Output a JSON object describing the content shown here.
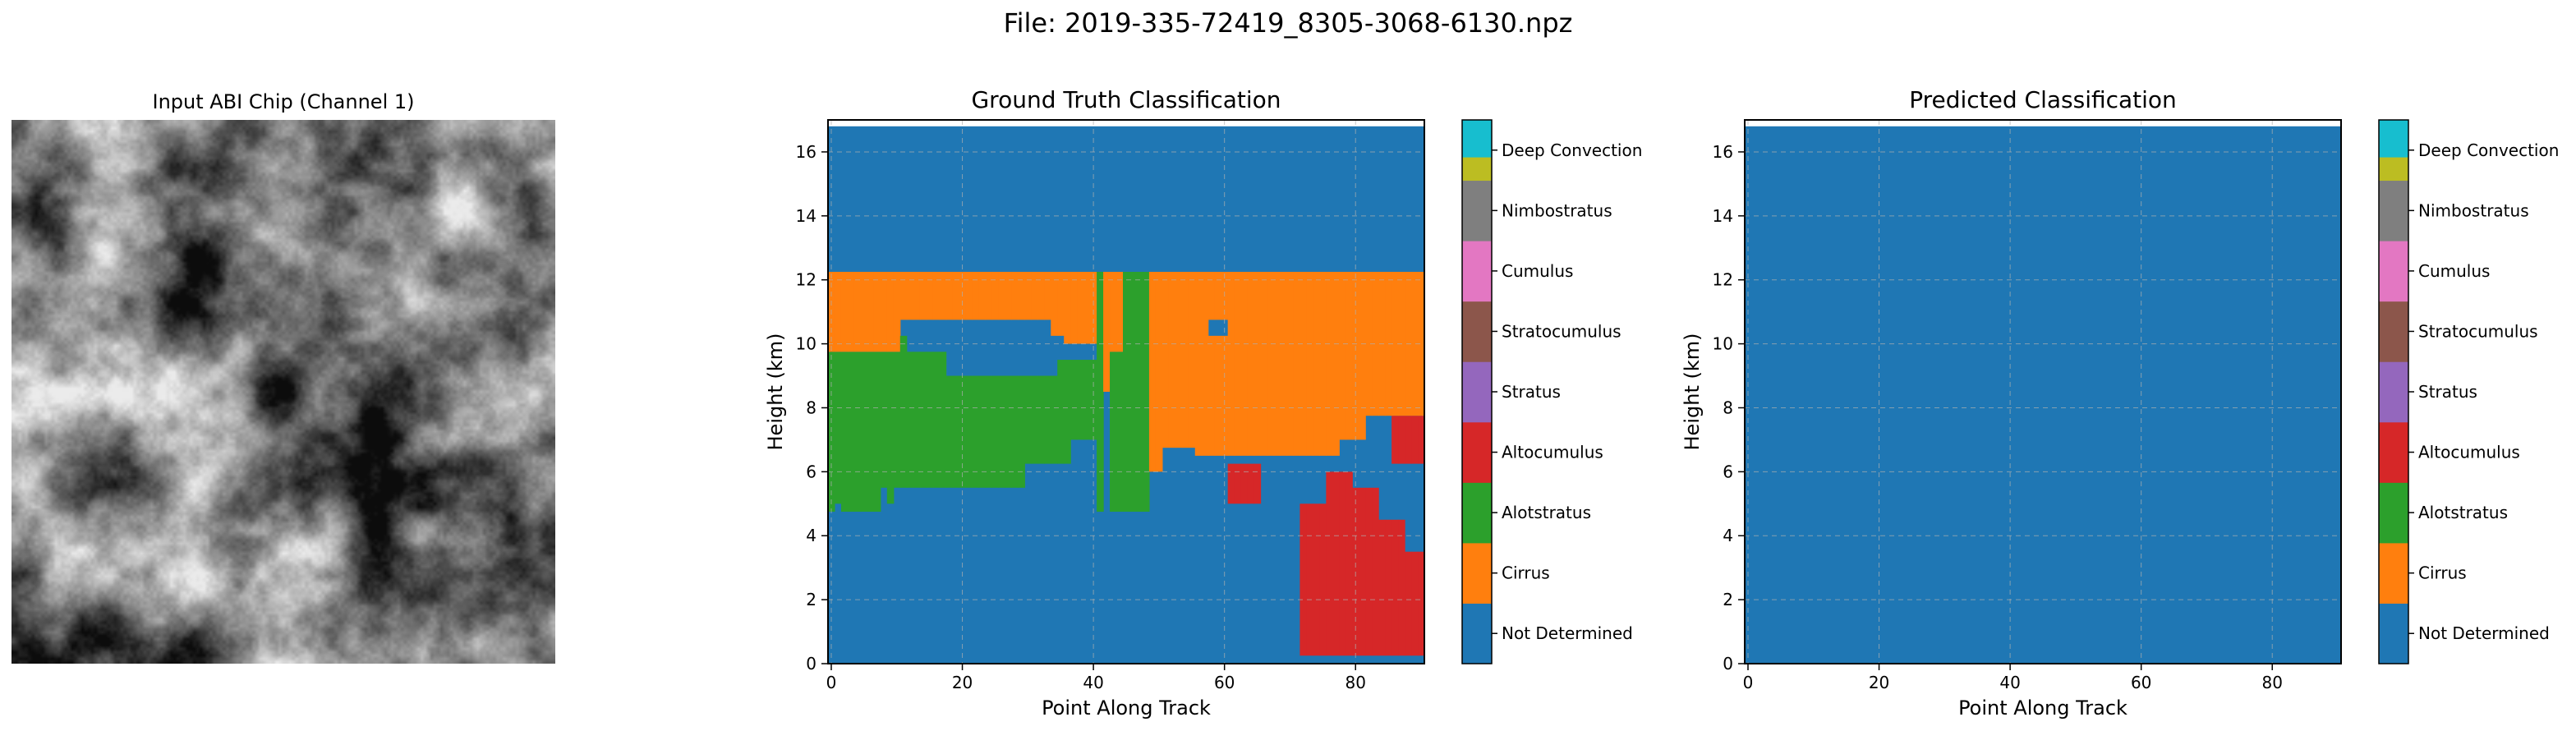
{
  "figure": {
    "title": "File: 2019-335-72419_8305-3068-6130.npz"
  },
  "chip": {
    "title": "Input ABI Chip (Channel 1)"
  },
  "colors": {
    "Not Determined": "#1f77b4",
    "Cirrus": "#ff7f0e",
    "Alotstratus": "#2ca02c",
    "Altocumulus": "#d62728",
    "Stratus": "#9467bd",
    "Stratocumulus": "#8c564b",
    "Cumulus": "#e377c2",
    "Nimbostratus": "#7f7f7f",
    "Deep Convection": "#bcbd22",
    "extra": "#17becf"
  },
  "chart_data": [
    {
      "type": "heatmap",
      "title": "Ground Truth Classification",
      "xlabel": "Point Along Track",
      "ylabel": "Height (km)",
      "xlim": [
        -0.5,
        90.5
      ],
      "ylim": [
        0,
        17
      ],
      "xticks": [
        0,
        20,
        40,
        60,
        80
      ],
      "yticks": [
        0,
        2,
        4,
        6,
        8,
        10,
        12,
        14,
        16
      ],
      "grid": true,
      "layers_km": {
        "background": "Not Determined from 0 to 16.8 km at all points",
        "cirrus_top": 12.2,
        "regions": [
          {
            "class": "Cirrus",
            "x": [
              0,
              41
            ],
            "y_top": 12.2,
            "y_bottom_approx": 9.8
          },
          {
            "class": "Cirrus",
            "x": [
              49,
              90
            ],
            "y_top": 12.2,
            "y_bottom_approx": 6.6
          },
          {
            "class": "Alotstratus",
            "x": [
              0,
              49
            ],
            "y_top_approx": 9.8,
            "y_bottom_approx": 4.8
          },
          {
            "class": "Altocumulus",
            "x": [
              71,
              90
            ],
            "y_top_approx": 6.2,
            "y_bottom_approx": 0.2
          },
          {
            "class": "Altocumulus",
            "x": [
              61,
              65
            ],
            "y_top_approx": 6.2,
            "y_bottom_approx": 5.0
          }
        ]
      },
      "colorbar": {
        "labels": [
          "Not Determined",
          "Cirrus",
          "Alotstratus",
          "Altocumulus",
          "Stratus",
          "Stratocumulus",
          "Cumulus",
          "Nimbostratus",
          "Deep Convection"
        ]
      }
    },
    {
      "type": "heatmap",
      "title": "Predicted Classification",
      "xlabel": "Point Along Track",
      "ylabel": "Height (km)",
      "xlim": [
        -0.5,
        90.5
      ],
      "ylim": [
        0,
        17
      ],
      "xticks": [
        0,
        20,
        40,
        60,
        80
      ],
      "yticks": [
        0,
        2,
        4,
        6,
        8,
        10,
        12,
        14,
        16
      ],
      "grid": true,
      "layers_km": {
        "background": "Not Determined from 0 to 16.8 km at all points",
        "regions": []
      },
      "colorbar": {
        "labels": [
          "Not Determined",
          "Cirrus",
          "Alotstratus",
          "Altocumulus",
          "Stratus",
          "Stratocumulus",
          "Cumulus",
          "Nimbostratus",
          "Deep Convection"
        ]
      }
    }
  ]
}
